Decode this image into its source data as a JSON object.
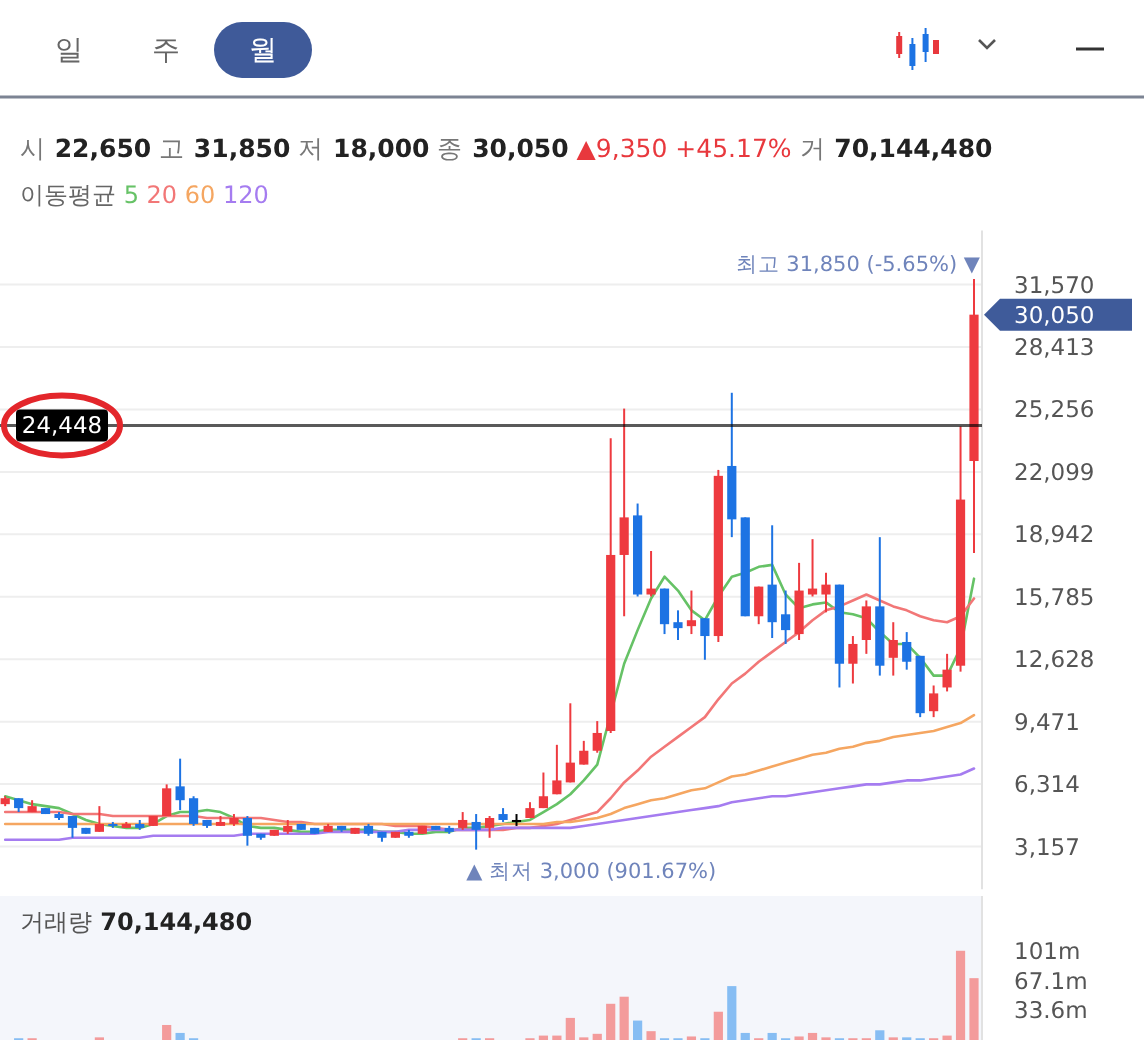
{
  "chart_data": [
    {
      "type": "candlestick",
      "subtitle": "시 22,650 고 31,850 저 18,000 종 30,050 ▲9,350 +45.17% 거 70,144,480",
      "legend_title": "이동평균",
      "legend": "top left",
      "grid": "y",
      "tick_labels": "y",
      "categories": [
        null,
        null,
        null,
        null,
        null,
        null,
        null,
        null,
        null,
        null,
        null,
        null,
        null,
        null,
        null,
        null,
        null,
        null,
        null,
        null,
        null,
        null,
        null,
        null,
        null,
        null,
        null,
        null,
        null,
        null,
        null,
        null,
        null,
        null,
        null,
        null,
        null,
        null,
        null,
        null,
        null,
        null,
        null,
        null,
        null,
        null,
        null,
        null,
        null,
        null,
        null,
        null,
        null,
        null,
        null,
        null,
        null,
        null,
        null,
        null,
        null,
        null,
        null,
        null,
        null,
        null,
        null,
        null,
        null,
        null,
        null,
        null,
        null
      ],
      "ohlc": [
        [
          5300,
          5700,
          5200,
          5600
        ],
        [
          5600,
          5600,
          4900,
          5100
        ],
        [
          4900,
          5500,
          4900,
          5200
        ],
        [
          5100,
          5100,
          4800,
          4800
        ],
        [
          4800,
          4900,
          4500,
          4600
        ],
        [
          4700,
          4700,
          3600,
          4100
        ],
        [
          4100,
          4100,
          3800,
          3800
        ],
        [
          3900,
          5200,
          3900,
          4300
        ],
        [
          4300,
          4400,
          4100,
          4200
        ],
        [
          4100,
          4400,
          4100,
          4300
        ],
        [
          4300,
          4500,
          4000,
          4100
        ],
        [
          4200,
          4700,
          4200,
          4700
        ],
        [
          4700,
          6300,
          4700,
          6100
        ],
        [
          6200,
          7600,
          5000,
          5500
        ],
        [
          5600,
          5700,
          4200,
          4300
        ],
        [
          4500,
          4500,
          4100,
          4200
        ],
        [
          4200,
          4700,
          4200,
          4400
        ],
        [
          4300,
          4800,
          4200,
          4600
        ],
        [
          4600,
          4700,
          3200,
          3700
        ],
        [
          3800,
          3800,
          3500,
          3600
        ],
        [
          3700,
          4000,
          3700,
          4000
        ],
        [
          3900,
          4500,
          3800,
          4200
        ],
        [
          4300,
          4300,
          4000,
          4000
        ],
        [
          4100,
          4100,
          3800,
          3800
        ],
        [
          3900,
          4300,
          3900,
          4200
        ],
        [
          4200,
          4200,
          3900,
          4000
        ],
        [
          3800,
          4100,
          3800,
          4100
        ],
        [
          4200,
          4300,
          3700,
          3800
        ],
        [
          3900,
          3900,
          3400,
          3600
        ],
        [
          3600,
          3900,
          3600,
          3900
        ],
        [
          3900,
          4000,
          3600,
          3700
        ],
        [
          3800,
          4200,
          3800,
          4200
        ],
        [
          4200,
          4200,
          4000,
          4000
        ],
        [
          4100,
          4200,
          3800,
          3900
        ],
        [
          4100,
          4900,
          4000,
          4500
        ],
        [
          4400,
          4800,
          3000,
          4000
        ],
        [
          4100,
          4700,
          3600,
          4600
        ],
        [
          4800,
          5100,
          4400,
          4500
        ],
        [
          4500,
          4800,
          4200,
          4500
        ],
        [
          4600,
          5400,
          4600,
          5100
        ],
        [
          5100,
          6900,
          5100,
          5700
        ],
        [
          5800,
          8300,
          5800,
          6500
        ],
        [
          6400,
          10400,
          6400,
          7400
        ],
        [
          7300,
          8500,
          7300,
          8000
        ],
        [
          8000,
          9500,
          7900,
          8900
        ],
        [
          9000,
          23800,
          8900,
          17900
        ],
        [
          17900,
          25300,
          14800,
          19800
        ],
        [
          19900,
          20500,
          15800,
          15900
        ],
        [
          15900,
          18100,
          15800,
          16200
        ],
        [
          16200,
          16200,
          13900,
          14400
        ],
        [
          14500,
          15100,
          13600,
          14200
        ],
        [
          14300,
          16100,
          13900,
          14600
        ],
        [
          14700,
          14700,
          12600,
          13800
        ],
        [
          13800,
          22200,
          13500,
          21900
        ],
        [
          22400,
          26100,
          18800,
          19700
        ],
        [
          19800,
          19800,
          14800,
          14800
        ],
        [
          14800,
          16300,
          14400,
          16300
        ],
        [
          16400,
          19400,
          13700,
          14500
        ],
        [
          14900,
          16100,
          13400,
          14100
        ],
        [
          13900,
          17500,
          13600,
          16100
        ],
        [
          15900,
          18700,
          15800,
          16200
        ],
        [
          15900,
          17000,
          15000,
          16400
        ],
        [
          16400,
          16400,
          11200,
          12400
        ],
        [
          12400,
          13800,
          11400,
          13400
        ],
        [
          13600,
          15600,
          12900,
          15300
        ],
        [
          15300,
          18800,
          11800,
          12300
        ],
        [
          12700,
          14500,
          11800,
          13600
        ],
        [
          13500,
          14000,
          12100,
          12500
        ],
        [
          12800,
          12800,
          9700,
          9900
        ],
        [
          10000,
          11300,
          9700,
          10900
        ],
        [
          11200,
          12900,
          11000,
          12100
        ],
        [
          12300,
          24400,
          12000,
          20700
        ],
        [
          22650,
          31850,
          18000,
          30050
        ]
      ],
      "colors": [
        "#ee3a3f",
        "#1d73e3",
        "#ee3a3f",
        "#1d73e3",
        "#1d73e3",
        "#1d73e3",
        "#1d73e3",
        "#ee3a3f",
        "#1d73e3",
        "#ee3a3f",
        "#1d73e3",
        "#ee3a3f",
        "#ee3a3f",
        "#1d73e3",
        "#1d73e3",
        "#1d73e3",
        "#ee3a3f",
        "#ee3a3f",
        "#1d73e3",
        "#1d73e3",
        "#ee3a3f",
        "#ee3a3f",
        "#1d73e3",
        "#1d73e3",
        "#ee3a3f",
        "#1d73e3",
        "#ee3a3f",
        "#1d73e3",
        "#1d73e3",
        "#ee3a3f",
        "#1d73e3",
        "#ee3a3f",
        "#1d73e3",
        "#1d73e3",
        "#ee3a3f",
        "#1d73e3",
        "#ee3a3f",
        "#1d73e3",
        "#000000",
        "#ee3a3f",
        "#ee3a3f",
        "#ee3a3f",
        "#ee3a3f",
        "#ee3a3f",
        "#ee3a3f",
        "#ee3a3f",
        "#ee3a3f",
        "#1d73e3",
        "#ee3a3f",
        "#1d73e3",
        "#1d73e3",
        "#ee3a3f",
        "#1d73e3",
        "#ee3a3f",
        "#1d73e3",
        "#1d73e3",
        "#ee3a3f",
        "#1d73e3",
        "#1d73e3",
        "#ee3a3f",
        "#ee3a3f",
        "#ee3a3f",
        "#1d73e3",
        "#ee3a3f",
        "#ee3a3f",
        "#1d73e3",
        "#ee3a3f",
        "#1d73e3",
        "#1d73e3",
        "#ee3a3f",
        "#ee3a3f",
        "#ee3a3f",
        "#ee3a3f"
      ],
      "series": [
        {
          "name": "5",
          "type": "line",
          "color": "#66c266",
          "values": [
            5700,
            5500,
            5300,
            5200,
            5100,
            4800,
            4500,
            4300,
            4200,
            4100,
            4100,
            4300,
            4700,
            4900,
            4900,
            5000,
            4900,
            4600,
            4200,
            4100,
            4100,
            4000,
            3900,
            3900,
            4000,
            4000,
            4000,
            4000,
            3900,
            3900,
            3800,
            3800,
            3900,
            3900,
            4100,
            4100,
            4200,
            4300,
            4400,
            4500,
            4900,
            5300,
            5800,
            6500,
            7300,
            null,
            12400,
            14100,
            15700,
            16800,
            16100,
            15100,
            14600,
            15800,
            16800,
            17000,
            17300,
            17400,
            15900,
            15200,
            15400,
            15500,
            15000,
            14900,
            14700,
            14000,
            13400,
            13400,
            12700,
            11800,
            11800,
            13200,
            16700
          ]
        },
        {
          "name": "20",
          "type": "line",
          "color": "#f27777",
          "values": [
            4900,
            4900,
            4900,
            4900,
            4900,
            4800,
            4800,
            4800,
            4700,
            4700,
            4700,
            4700,
            4700,
            4700,
            4700,
            4600,
            4600,
            4600,
            4600,
            4600,
            4500,
            4400,
            4400,
            4300,
            4300,
            4300,
            4300,
            4300,
            4300,
            4200,
            4200,
            4200,
            4100,
            4000,
            4000,
            4000,
            4000,
            4000,
            4100,
            4100,
            4200,
            4300,
            4500,
            4700,
            4900,
            5600,
            6400,
            7000,
            7700,
            8200,
            8700,
            9200,
            9700,
            10600,
            11400,
            11900,
            12500,
            13000,
            13500,
            14000,
            14600,
            15100,
            15300,
            15600,
            15900,
            15600,
            15300,
            15100,
            14800,
            14600,
            14500,
            14800,
            15700
          ]
        },
        {
          "name": "60",
          "type": "line",
          "color": "#f5a661",
          "values": [
            4300,
            4300,
            4300,
            4300,
            4300,
            4300,
            4300,
            4300,
            4300,
            4300,
            4300,
            4300,
            4300,
            4300,
            4300,
            4300,
            4300,
            4300,
            4300,
            4300,
            4300,
            4300,
            4300,
            4300,
            4300,
            4300,
            4300,
            4300,
            4300,
            4300,
            4300,
            4300,
            4300,
            4300,
            4300,
            4300,
            4300,
            4300,
            4300,
            4300,
            4300,
            4400,
            4400,
            4500,
            4600,
            4800,
            5100,
            5300,
            5500,
            5600,
            5800,
            6000,
            6100,
            6400,
            6700,
            6800,
            7000,
            7200,
            7400,
            7600,
            7800,
            7900,
            8100,
            8200,
            8400,
            8500,
            8700,
            8800,
            8900,
            9000,
            9200,
            9400,
            9800
          ]
        },
        {
          "name": "120",
          "type": "line",
          "color": "#a57cf0",
          "values": [
            3500,
            3500,
            3500,
            3500,
            3500,
            3600,
            3600,
            3600,
            3600,
            3600,
            3600,
            3700,
            3700,
            3700,
            3700,
            3700,
            3700,
            3700,
            3800,
            3800,
            3800,
            3800,
            3800,
            3800,
            3900,
            3900,
            3900,
            3900,
            3900,
            3900,
            4000,
            4000,
            4000,
            4000,
            4000,
            4000,
            4000,
            4100,
            4100,
            4100,
            4100,
            4100,
            4100,
            4200,
            4300,
            4400,
            4500,
            4600,
            4700,
            4800,
            4900,
            5000,
            5100,
            5200,
            5400,
            5500,
            5600,
            5700,
            5700,
            5800,
            5900,
            6000,
            6100,
            6200,
            6300,
            6300,
            6400,
            6500,
            6500,
            6600,
            6700,
            6800,
            7100
          ]
        }
      ],
      "ylim": [
        1000,
        34300
      ],
      "yticks": [
        {
          "value": 3157,
          "label": "3,157"
        },
        {
          "value": 6314,
          "label": "6,314"
        },
        {
          "value": 9471,
          "label": "9,471"
        },
        {
          "value": 12628,
          "label": "12,628"
        },
        {
          "value": 15785,
          "label": "15,785"
        },
        {
          "value": 18942,
          "label": "18,942"
        },
        {
          "value": 22099,
          "label": "22,099"
        },
        {
          "value": 25256,
          "label": "25,256"
        },
        {
          "value": 28413,
          "label": "28,413"
        },
        {
          "value": 31570,
          "label": "31,570"
        }
      ],
      "ref_lines": [
        {
          "axis": "y",
          "value": 24448,
          "label": "24,448",
          "color": "#000000"
        }
      ],
      "annotations": [
        "일",
        "주",
        "월",
        "최고 31,850 (-5.65%) ▼",
        "▲ 최저 3,000 (901.67%)",
        "30,050"
      ]
    },
    {
      "type": "bar",
      "title": "거래량 70,144,480",
      "tick_labels": "y",
      "categories": [
        null,
        null,
        null,
        null,
        null,
        null,
        null,
        null,
        null,
        null,
        null,
        null,
        null,
        null,
        null,
        null,
        null,
        null,
        null,
        null,
        null,
        null,
        null,
        null,
        null,
        null,
        null,
        null,
        null,
        null,
        null,
        null,
        null,
        null,
        null,
        null,
        null,
        null,
        null,
        null,
        null,
        null,
        null,
        null,
        null,
        null,
        null,
        null,
        null,
        null,
        null,
        null,
        null,
        null,
        null,
        null,
        null,
        null,
        null,
        null,
        null,
        null,
        null,
        null,
        null,
        null,
        null,
        null,
        null,
        null,
        null,
        null,
        null
      ],
      "values": [
        null,
        2,
        2,
        null,
        null,
        null,
        null,
        3,
        null,
        null,
        null,
        null,
        17,
        8,
        2,
        null,
        null,
        null,
        null,
        null,
        null,
        null,
        null,
        null,
        null,
        null,
        null,
        null,
        null,
        null,
        null,
        null,
        null,
        null,
        2,
        2,
        2,
        null,
        null,
        2,
        5,
        5,
        25,
        3,
        7,
        41,
        49,
        22,
        10,
        2,
        2,
        4,
        2,
        32,
        61,
        8,
        2,
        8,
        2,
        4,
        8,
        3,
        2,
        2,
        2,
        11,
        3,
        3,
        2,
        2,
        5,
        101,
        70
      ],
      "colors": [
        null,
        "#86bdf3",
        "#f39b9b",
        null,
        null,
        null,
        null,
        "#f39b9b",
        null,
        null,
        null,
        null,
        "#f39b9b",
        "#86bdf3",
        "#86bdf3",
        null,
        null,
        null,
        null,
        null,
        null,
        null,
        null,
        null,
        null,
        null,
        null,
        null,
        null,
        null,
        null,
        null,
        null,
        null,
        "#f39b9b",
        "#86bdf3",
        "#f39b9b",
        null,
        null,
        "#f39b9b",
        "#f39b9b",
        "#f39b9b",
        "#f39b9b",
        "#f39b9b",
        "#f39b9b",
        "#f39b9b",
        "#f39b9b",
        "#86bdf3",
        "#f39b9b",
        "#86bdf3",
        "#86bdf3",
        "#f39b9b",
        "#86bdf3",
        "#f39b9b",
        "#86bdf3",
        "#86bdf3",
        "#f39b9b",
        "#86bdf3",
        "#86bdf3",
        "#f39b9b",
        "#f39b9b",
        "#f39b9b",
        "#86bdf3",
        "#f39b9b",
        "#f39b9b",
        "#86bdf3",
        "#f39b9b",
        "#86bdf3",
        "#86bdf3",
        "#f39b9b",
        "#f39b9b",
        "#f39b9b",
        "#f39b9b"
      ],
      "ylim": [
        0,
        163
      ],
      "yticks": [
        {
          "value": 33.6,
          "label": "33.6m"
        },
        {
          "value": 67.1,
          "label": "67.1m"
        },
        {
          "value": 101,
          "label": "101m"
        }
      ]
    }
  ]
}
